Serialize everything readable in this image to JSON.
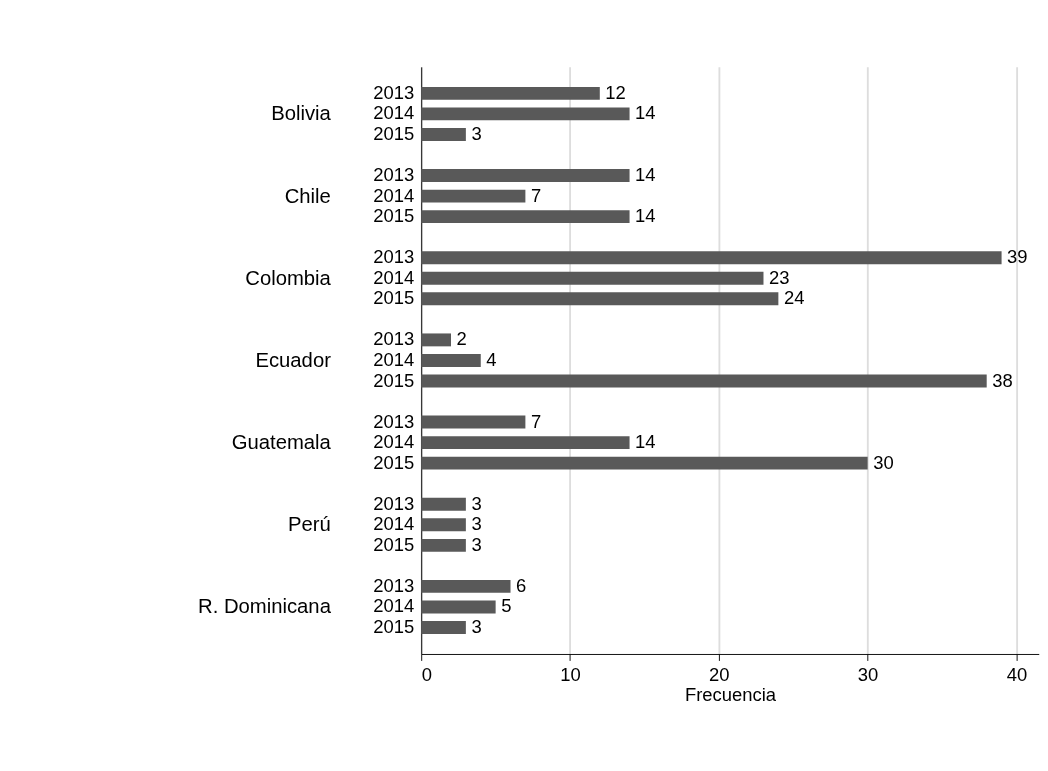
{
  "chart_data": {
    "type": "bar",
    "orientation": "horizontal",
    "xlabel": "Frecuencia",
    "categories": [
      "2013",
      "2014",
      "2015",
      "2013",
      "2014",
      "2015",
      "2013",
      "2014",
      "2015",
      "2013",
      "2014",
      "2015",
      "2013",
      "2014",
      "2015",
      "2013",
      "2014",
      "2015",
      "2013",
      "2014",
      "2015"
    ],
    "values": [
      12,
      14,
      3,
      14,
      7,
      14,
      39,
      23,
      24,
      2,
      4,
      38,
      7,
      14,
      30,
      3,
      3,
      3,
      6,
      5,
      3
    ],
    "color": "#595959",
    "annotations": [
      "Bolivia",
      "Chile",
      "Colombia",
      "Ecuador",
      "Guatemala",
      "Perú",
      "R. Dominicana"
    ],
    "xlim": [
      0,
      41.5
    ],
    "xticks": [
      0,
      10,
      20,
      30,
      40
    ],
    "grid": "x",
    "data_labels": true
  }
}
